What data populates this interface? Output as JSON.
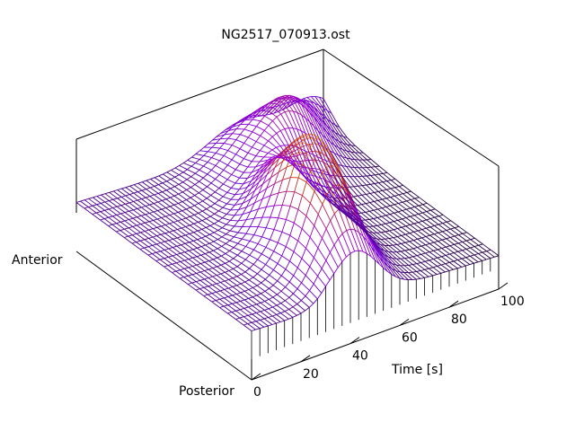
{
  "chart_data": {
    "type": "surface",
    "title": "NG2517_070913.ost",
    "xlabel": "Time [s]",
    "ylabel_low": "Posterior",
    "ylabel_high": "Anterior",
    "xlim": [
      0,
      100
    ],
    "xticks": [
      "0",
      "20",
      "40",
      "60",
      "80",
      "100"
    ],
    "z_range": [
      0,
      1
    ],
    "grid": "off",
    "colormap": [
      "#000000",
      "#6a00c8",
      "#9a00d6",
      "#d03a00",
      "#ffe640"
    ],
    "surface_shape": {
      "peak_time": 46,
      "peak_position": 0.18,
      "peak_height": 1.0,
      "ridge_direction": "peak migrates from anterior toward posterior as time increases",
      "secondary_ridge": "lower wave near anterior edge at later times"
    }
  }
}
